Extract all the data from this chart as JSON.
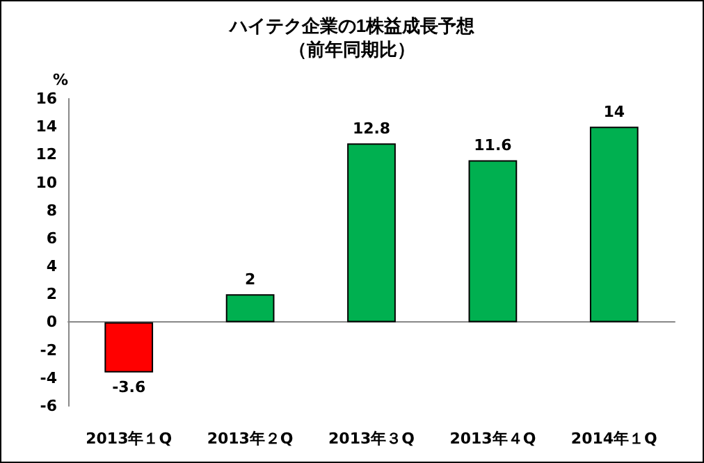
{
  "chart_data": {
    "type": "bar",
    "title": "ハイテク企業の1株益成長予想",
    "subtitle": "（前年同期比）",
    "ylabel": "%",
    "categories": [
      "2013年１Q",
      "2013年２Q",
      "2013年３Q",
      "2013年４Q",
      "2014年１Q"
    ],
    "values": [
      -3.6,
      2,
      12.8,
      11.6,
      14
    ],
    "colors": [
      "#ff0000",
      "#00b050",
      "#00b050",
      "#00b050",
      "#00b050"
    ],
    "ylim": [
      -6,
      16
    ],
    "yticks": [
      -6,
      -4,
      -2,
      0,
      2,
      4,
      6,
      8,
      10,
      12,
      14,
      16
    ],
    "data_labels": true
  }
}
